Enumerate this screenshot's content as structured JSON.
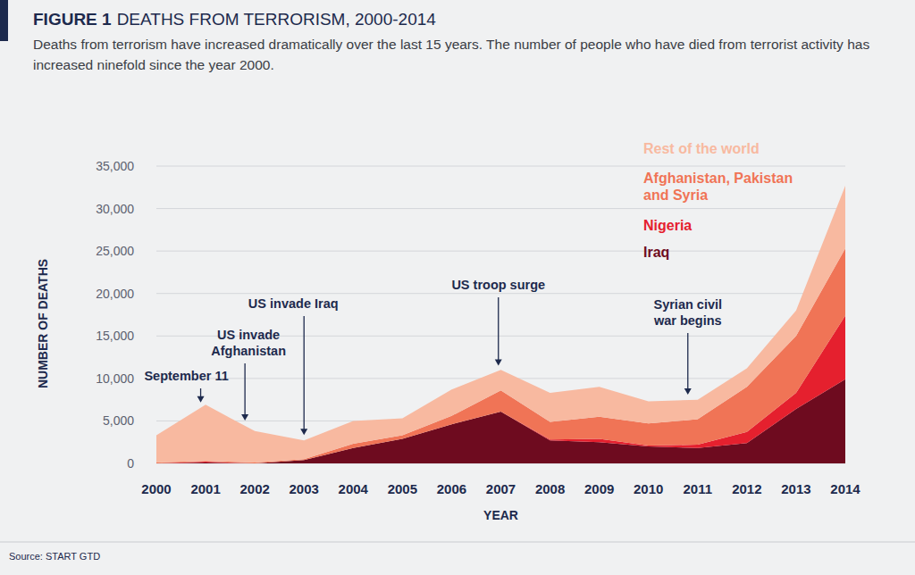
{
  "chart_data": {
    "type": "area",
    "stacked": true,
    "figure_label": "FIGURE 1",
    "title": "DEATHS FROM TERRORISM, 2000-2014",
    "subtitle": "Deaths from terrorism have increased dramatically over the last 15 years. The number of people who have died from terrorist activity has increased ninefold since the year 2000.",
    "x_label": "YEAR",
    "y_label": "NUMBER OF DEATHS",
    "source": "Source: START GTD",
    "x": [
      2000,
      2001,
      2002,
      2003,
      2004,
      2005,
      2006,
      2007,
      2008,
      2009,
      2010,
      2011,
      2012,
      2013,
      2014
    ],
    "xlim": [
      2000,
      2014
    ],
    "xticks": [
      2000,
      2001,
      2002,
      2003,
      2004,
      2005,
      2006,
      2007,
      2008,
      2009,
      2010,
      2011,
      2012,
      2013,
      2014
    ],
    "ylim": [
      0,
      35000
    ],
    "yticks": [
      0,
      {
        "value": 5000,
        "label": "5,000"
      },
      {
        "value": 10000,
        "label": "10,000"
      },
      {
        "value": 15000,
        "label": "15,000"
      },
      {
        "value": 20000,
        "label": "20,000"
      },
      {
        "value": 25000,
        "label": "25,000"
      },
      {
        "value": 30000,
        "label": "30,000"
      },
      {
        "value": 35000,
        "label": "35,000"
      }
    ],
    "grid": true,
    "legend": "top-right",
    "series": [
      {
        "name": "Iraq",
        "color": "#6e0b1f",
        "values": [
          0,
          100,
          0,
          400,
          1800,
          2900,
          4600,
          6100,
          2700,
          2500,
          2000,
          1800,
          2400,
          6400,
          9900
        ]
      },
      {
        "name": "Nigeria",
        "color": "#e5202e",
        "values": [
          0,
          100,
          0,
          0,
          0,
          0,
          0,
          0,
          100,
          400,
          100,
          400,
          1300,
          1900,
          7500
        ]
      },
      {
        "name": "Afghanistan, Pakistan\nand Syria",
        "color": "#f07456",
        "values": [
          100,
          100,
          100,
          100,
          500,
          400,
          1000,
          2500,
          2100,
          2600,
          2600,
          3000,
          5300,
          6700,
          7900
        ]
      },
      {
        "name": "Rest of the world",
        "color": "#f8b9a0",
        "values": [
          3200,
          6600,
          3700,
          2200,
          2700,
          2000,
          3100,
          2400,
          3400,
          3500,
          2600,
          2300,
          2200,
          3000,
          7400
        ]
      }
    ],
    "annotations": [
      {
        "text": "September 11",
        "x": 2000.9
      },
      {
        "text": "US invade\nAfghanistan",
        "x": 2001.8
      },
      {
        "text": "US invade Iraq",
        "x": 2003.0
      },
      {
        "text": "US troop surge",
        "x": 2006.95
      },
      {
        "text": "Syrian civil\nwar begins",
        "x": 2010.8
      }
    ]
  }
}
